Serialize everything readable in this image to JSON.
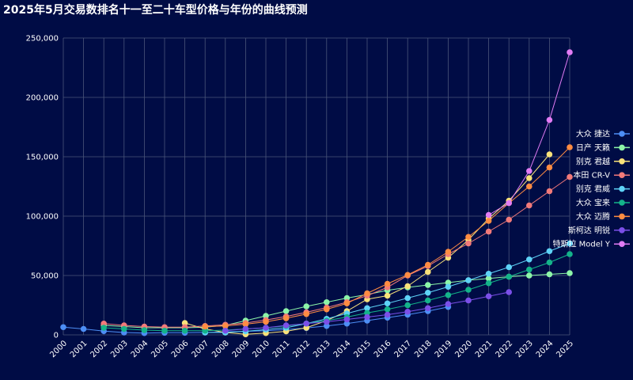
{
  "chart_data": {
    "type": "line",
    "title": "2025年5月交易数排名十一至二十车型价格与年份的曲线预测",
    "xlabel": "",
    "ylabel": "",
    "x": [
      "2000",
      "2001",
      "2002",
      "2003",
      "2004",
      "2005",
      "2006",
      "2007",
      "2008",
      "2009",
      "2010",
      "2011",
      "2012",
      "2013",
      "2014",
      "2015",
      "2016",
      "2017",
      "2018",
      "2019",
      "2020",
      "2021",
      "2022",
      "2023",
      "2024",
      "2025"
    ],
    "ylim": [
      0,
      250000
    ],
    "y_ticks": [
      "0",
      "50,000",
      "100,000",
      "150,000",
      "200,000",
      "250,000"
    ],
    "grid": true,
    "legend_position": "right",
    "series": [
      {
        "name": "大众 捷达",
        "color": "#4d8ef5",
        "values": [
          6500,
          5000,
          3200,
          2000,
          1500,
          1800,
          1800,
          2000,
          2500,
          3000,
          3500,
          4500,
          5800,
          7500,
          9500,
          12000,
          14500,
          17000,
          20000,
          23500,
          null,
          null,
          null,
          null,
          null,
          null
        ]
      },
      {
        "name": "日产 天籁",
        "color": "#8cf5a8",
        "values": [
          null,
          null,
          8000,
          7000,
          6000,
          6000,
          6000,
          6500,
          8000,
          12000,
          16000,
          20000,
          24000,
          27500,
          31000,
          34000,
          37500,
          40000,
          42000,
          44000,
          46000,
          47500,
          49000,
          50000,
          51000,
          52000
        ]
      },
      {
        "name": "别克 君越",
        "color": "#f9e27a",
        "values": [
          null,
          null,
          null,
          null,
          null,
          null,
          10000,
          5000,
          2000,
          500,
          1500,
          3000,
          6000,
          12000,
          20000,
          30000,
          33000,
          41000,
          53000,
          65000,
          80000,
          98000,
          113000,
          132000,
          152000,
          null
        ]
      },
      {
        "name": "本田 CR-V",
        "color": "#f27a7a",
        "values": [
          null,
          null,
          9500,
          8000,
          7000,
          6500,
          6500,
          7500,
          8500,
          10000,
          12500,
          15500,
          19000,
          23000,
          27500,
          33000,
          40000,
          50000,
          58000,
          68000,
          77000,
          87000,
          97000,
          109000,
          121000,
          133000
        ]
      },
      {
        "name": "别克 君威",
        "color": "#5ed3f7",
        "values": [
          null,
          null,
          null,
          null,
          null,
          null,
          null,
          2000,
          2000,
          3000,
          4500,
          6000,
          9500,
          13500,
          18000,
          22500,
          26500,
          31000,
          35500,
          40500,
          46000,
          51500,
          57000,
          63500,
          70500,
          77000
        ]
      },
      {
        "name": "大众 宝来",
        "color": "#14b38a",
        "values": [
          null,
          null,
          6000,
          5000,
          4000,
          3500,
          3500,
          3500,
          4000,
          5000,
          6000,
          7500,
          9500,
          12000,
          15000,
          18500,
          21500,
          25000,
          29000,
          33500,
          38000,
          43500,
          49000,
          55000,
          61000,
          68000
        ]
      },
      {
        "name": "大众 迈腾",
        "color": "#ff8c42",
        "values": [
          null,
          null,
          null,
          null,
          null,
          null,
          null,
          7000,
          7500,
          9000,
          11000,
          14000,
          17500,
          21500,
          26500,
          35000,
          43000,
          50500,
          59000,
          70000,
          82500,
          96000,
          111000,
          125000,
          141000,
          158000
        ]
      },
      {
        "name": "斯柯达 明锐",
        "color": "#7b4fe8",
        "values": [
          null,
          null,
          null,
          null,
          null,
          null,
          null,
          null,
          3500,
          5000,
          6000,
          8000,
          9500,
          11000,
          13000,
          15000,
          17000,
          19500,
          22500,
          26000,
          29000,
          32500,
          36000,
          null,
          null,
          null
        ]
      },
      {
        "name": "特斯拉 Model Y",
        "color": "#e27cf5",
        "values": [
          null,
          null,
          null,
          null,
          null,
          null,
          null,
          null,
          null,
          null,
          null,
          null,
          null,
          null,
          null,
          null,
          null,
          null,
          null,
          null,
          null,
          101000,
          111000,
          138000,
          181000,
          238000
        ]
      }
    ]
  }
}
